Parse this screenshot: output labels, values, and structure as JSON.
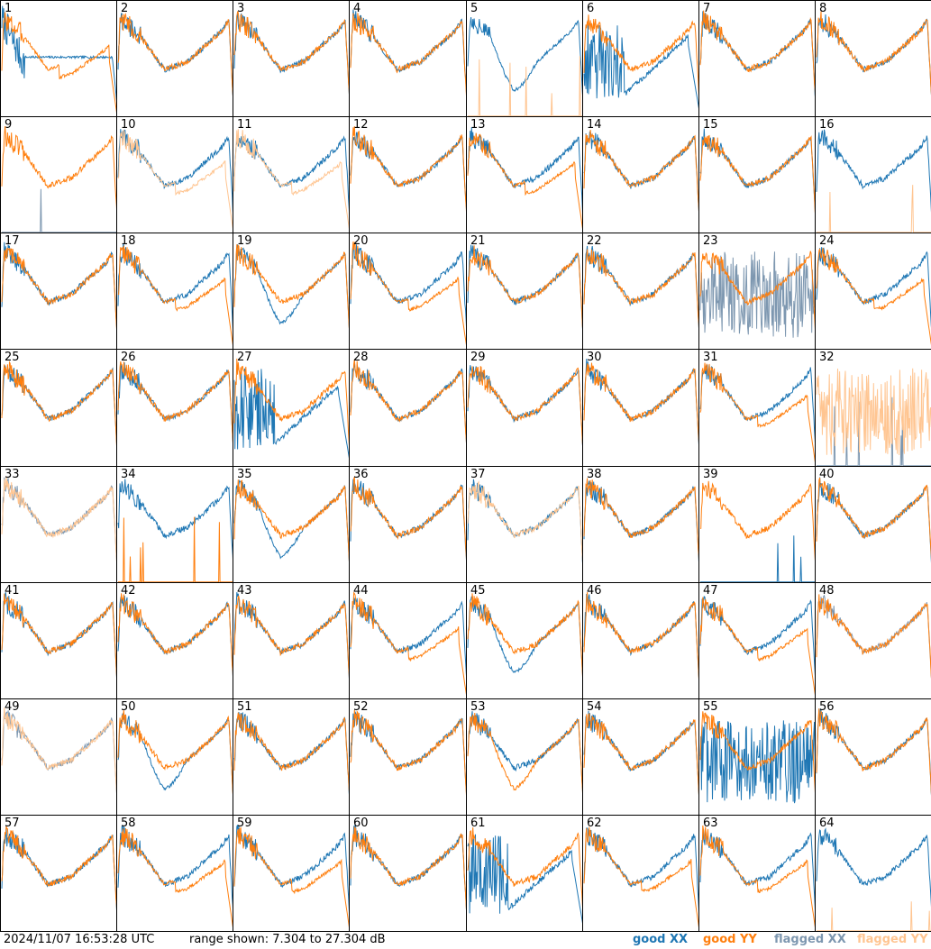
{
  "footer": {
    "timestamp": "2024/11/07 16:53:28 UTC",
    "range_text": "range shown: 7.304 to 27.304 dB"
  },
  "chart_data": {
    "type": "line",
    "layout": "8x8 small multiples",
    "ylim": [
      7.304,
      27.304
    ],
    "yunit": "dB",
    "legend": [
      {
        "name": "good XX",
        "color": "#1f77b4"
      },
      {
        "name": "good YY",
        "color": "#ff7f0e"
      },
      {
        "name": "flagged XX",
        "color": "#7d97b0"
      },
      {
        "name": "flagged YY",
        "color": "#ffc591"
      }
    ],
    "panels": [
      {
        "id": "1",
        "xx": "good",
        "yy": "good",
        "xx_shape": "flat",
        "yy_shape": "dropoff"
      },
      {
        "id": "2",
        "xx": "good",
        "yy": "good",
        "xx_shape": "typical",
        "yy_shape": "typical"
      },
      {
        "id": "3",
        "xx": "good",
        "yy": "good",
        "xx_shape": "typical",
        "yy_shape": "typical"
      },
      {
        "id": "4",
        "xx": "good",
        "yy": "good",
        "xx_shape": "typical",
        "yy_shape": "typical"
      },
      {
        "id": "5",
        "xx": "good",
        "yy": "flagged",
        "xx_shape": "dip",
        "yy_shape": "zero"
      },
      {
        "id": "6",
        "xx": "good",
        "yy": "good",
        "xx_shape": "noisydip",
        "yy_shape": "typical"
      },
      {
        "id": "7",
        "xx": "good",
        "yy": "good",
        "xx_shape": "typical",
        "yy_shape": "typical"
      },
      {
        "id": "8",
        "xx": "good",
        "yy": "good",
        "xx_shape": "typical",
        "yy_shape": "typical"
      },
      {
        "id": "9",
        "xx": "flagged",
        "yy": "good",
        "xx_shape": "zero",
        "yy_shape": "typical"
      },
      {
        "id": "10",
        "xx": "good",
        "yy": "flagged",
        "xx_shape": "typical",
        "yy_shape": "dropoff"
      },
      {
        "id": "11",
        "xx": "good",
        "yy": "flagged",
        "xx_shape": "typical",
        "yy_shape": "dropoff"
      },
      {
        "id": "12",
        "xx": "good",
        "yy": "good",
        "xx_shape": "typical",
        "yy_shape": "typical"
      },
      {
        "id": "13",
        "xx": "good",
        "yy": "good",
        "xx_shape": "typical",
        "yy_shape": "dropoff"
      },
      {
        "id": "14",
        "xx": "good",
        "yy": "good",
        "xx_shape": "typical",
        "yy_shape": "typical"
      },
      {
        "id": "15",
        "xx": "good",
        "yy": "good",
        "xx_shape": "typical",
        "yy_shape": "typical"
      },
      {
        "id": "16",
        "xx": "good",
        "yy": "flagged",
        "xx_shape": "typical",
        "yy_shape": "zero"
      },
      {
        "id": "17",
        "xx": "good",
        "yy": "good",
        "xx_shape": "typical",
        "yy_shape": "typical"
      },
      {
        "id": "18",
        "xx": "good",
        "yy": "good",
        "xx_shape": "typical",
        "yy_shape": "dropoff"
      },
      {
        "id": "19",
        "xx": "good",
        "yy": "good",
        "xx_shape": "dip",
        "yy_shape": "typical"
      },
      {
        "id": "20",
        "xx": "good",
        "yy": "good",
        "xx_shape": "typical",
        "yy_shape": "dropoff"
      },
      {
        "id": "21",
        "xx": "good",
        "yy": "good",
        "xx_shape": "typical",
        "yy_shape": "typical"
      },
      {
        "id": "22",
        "xx": "good",
        "yy": "good",
        "xx_shape": "typical",
        "yy_shape": "typical"
      },
      {
        "id": "23",
        "xx": "flagged",
        "yy": "good",
        "xx_shape": "noise",
        "yy_shape": "typical"
      },
      {
        "id": "24",
        "xx": "good",
        "yy": "good",
        "xx_shape": "typical",
        "yy_shape": "dropoff"
      },
      {
        "id": "25",
        "xx": "good",
        "yy": "good",
        "xx_shape": "typical",
        "yy_shape": "typical"
      },
      {
        "id": "26",
        "xx": "good",
        "yy": "good",
        "xx_shape": "typical",
        "yy_shape": "typical"
      },
      {
        "id": "27",
        "xx": "good",
        "yy": "good",
        "xx_shape": "noisydip",
        "yy_shape": "typical"
      },
      {
        "id": "28",
        "xx": "good",
        "yy": "good",
        "xx_shape": "typical",
        "yy_shape": "typical"
      },
      {
        "id": "29",
        "xx": "good",
        "yy": "good",
        "xx_shape": "typical",
        "yy_shape": "typical"
      },
      {
        "id": "30",
        "xx": "good",
        "yy": "good",
        "xx_shape": "typical",
        "yy_shape": "typical"
      },
      {
        "id": "31",
        "xx": "good",
        "yy": "good",
        "xx_shape": "typical",
        "yy_shape": "dropoff"
      },
      {
        "id": "32",
        "xx": "flagged",
        "yy": "flagged",
        "xx_shape": "zero",
        "yy_shape": "noise"
      },
      {
        "id": "33",
        "xx": "flagged",
        "yy": "flagged",
        "xx_shape": "typical",
        "yy_shape": "typical"
      },
      {
        "id": "34",
        "xx": "good",
        "yy": "good",
        "xx_shape": "typical",
        "yy_shape": "zero"
      },
      {
        "id": "35",
        "xx": "good",
        "yy": "good",
        "xx_shape": "dip",
        "yy_shape": "typical"
      },
      {
        "id": "36",
        "xx": "good",
        "yy": "good",
        "xx_shape": "typical",
        "yy_shape": "typical"
      },
      {
        "id": "37",
        "xx": "good",
        "yy": "flagged",
        "xx_shape": "typical",
        "yy_shape": "typical"
      },
      {
        "id": "38",
        "xx": "good",
        "yy": "good",
        "xx_shape": "typical",
        "yy_shape": "typical"
      },
      {
        "id": "39",
        "xx": "good",
        "yy": "good",
        "xx_shape": "zero",
        "yy_shape": "typical"
      },
      {
        "id": "40",
        "xx": "good",
        "yy": "good",
        "xx_shape": "typical",
        "yy_shape": "typical"
      },
      {
        "id": "41",
        "xx": "good",
        "yy": "good",
        "xx_shape": "typical",
        "yy_shape": "typical"
      },
      {
        "id": "42",
        "xx": "good",
        "yy": "good",
        "xx_shape": "typical",
        "yy_shape": "typical"
      },
      {
        "id": "43",
        "xx": "good",
        "yy": "good",
        "xx_shape": "typical",
        "yy_shape": "typical"
      },
      {
        "id": "44",
        "xx": "good",
        "yy": "good",
        "xx_shape": "typical",
        "yy_shape": "dropoff"
      },
      {
        "id": "45",
        "xx": "good",
        "yy": "good",
        "xx_shape": "dip",
        "yy_shape": "typical"
      },
      {
        "id": "46",
        "xx": "good",
        "yy": "good",
        "xx_shape": "typical",
        "yy_shape": "typical"
      },
      {
        "id": "47",
        "xx": "good",
        "yy": "good",
        "xx_shape": "typical",
        "yy_shape": "dropoff"
      },
      {
        "id": "48",
        "xx": "flagged",
        "yy": "good",
        "xx_shape": "typical",
        "yy_shape": "typical"
      },
      {
        "id": "49",
        "xx": "flagged",
        "yy": "flagged",
        "xx_shape": "typical",
        "yy_shape": "typical"
      },
      {
        "id": "50",
        "xx": "good",
        "yy": "good",
        "xx_shape": "dip",
        "yy_shape": "typical"
      },
      {
        "id": "51",
        "xx": "good",
        "yy": "good",
        "xx_shape": "typical",
        "yy_shape": "typical"
      },
      {
        "id": "52",
        "xx": "good",
        "yy": "good",
        "xx_shape": "typical",
        "yy_shape": "typical"
      },
      {
        "id": "53",
        "xx": "good",
        "yy": "good",
        "xx_shape": "typical",
        "yy_shape": "dip"
      },
      {
        "id": "54",
        "xx": "good",
        "yy": "good",
        "xx_shape": "typical",
        "yy_shape": "typical"
      },
      {
        "id": "55",
        "xx": "good",
        "yy": "good",
        "xx_shape": "noise",
        "yy_shape": "typical"
      },
      {
        "id": "56",
        "xx": "good",
        "yy": "good",
        "xx_shape": "typical",
        "yy_shape": "typical"
      },
      {
        "id": "57",
        "xx": "good",
        "yy": "good",
        "xx_shape": "typical",
        "yy_shape": "typical"
      },
      {
        "id": "58",
        "xx": "good",
        "yy": "good",
        "xx_shape": "typical",
        "yy_shape": "dropoff"
      },
      {
        "id": "59",
        "xx": "good",
        "yy": "good",
        "xx_shape": "typical",
        "yy_shape": "dropoff"
      },
      {
        "id": "60",
        "xx": "good",
        "yy": "good",
        "xx_shape": "typical",
        "yy_shape": "typical"
      },
      {
        "id": "61",
        "xx": "good",
        "yy": "good",
        "xx_shape": "noisydip",
        "yy_shape": "typical"
      },
      {
        "id": "62",
        "xx": "good",
        "yy": "good",
        "xx_shape": "typical",
        "yy_shape": "dropoff"
      },
      {
        "id": "63",
        "xx": "good",
        "yy": "good",
        "xx_shape": "typical",
        "yy_shape": "dropoff"
      },
      {
        "id": "64",
        "xx": "good",
        "yy": "flagged",
        "xx_shape": "typical",
        "yy_shape": "zero"
      }
    ]
  }
}
